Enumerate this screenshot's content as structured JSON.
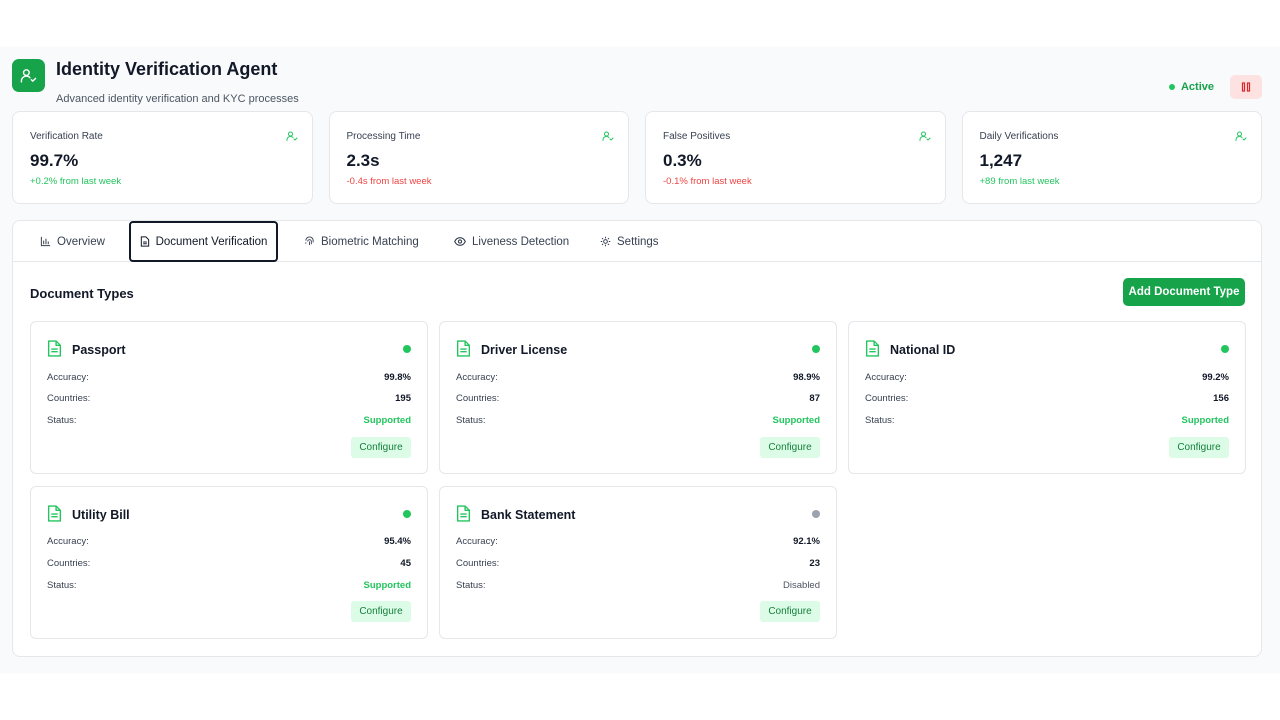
{
  "header": {
    "title": "Identity Verification Agent",
    "subtitle": "Advanced identity verification and KYC processes",
    "status": "Active",
    "icon": "user-check-icon",
    "pause_icon": "pause-icon"
  },
  "stats": [
    {
      "label": "Verification Rate",
      "value": "99.7%",
      "change": "+0.2% from last week",
      "trend": "positive"
    },
    {
      "label": "Processing Time",
      "value": "2.3s",
      "change": "-0.4s from last week",
      "trend": "negative"
    },
    {
      "label": "False Positives",
      "value": "0.3%",
      "change": "-0.1% from last week",
      "trend": "negative"
    },
    {
      "label": "Daily Verifications",
      "value": "1,247",
      "change": "+89 from last week",
      "trend": "positive"
    }
  ],
  "tabs": [
    {
      "label": "Overview",
      "icon": "bar-chart-icon"
    },
    {
      "label": "Document Verification",
      "icon": "document-icon",
      "active": true
    },
    {
      "label": "Biometric Matching",
      "icon": "fingerprint-icon"
    },
    {
      "label": "Liveness Detection",
      "icon": "eye-icon"
    },
    {
      "label": "Settings",
      "icon": "gear-icon"
    }
  ],
  "section": {
    "title": "Document Types",
    "add_label": "Add Document Type"
  },
  "labels": {
    "accuracy": "Accuracy:",
    "countries": "Countries:",
    "status": "Status:",
    "configure": "Configure"
  },
  "documents": [
    {
      "name": "Passport",
      "accuracy": "99.8%",
      "countries": "195",
      "status": "Supported",
      "enabled": true
    },
    {
      "name": "Driver License",
      "accuracy": "98.9%",
      "countries": "87",
      "status": "Supported",
      "enabled": true
    },
    {
      "name": "National ID",
      "accuracy": "99.2%",
      "countries": "156",
      "status": "Supported",
      "enabled": true
    },
    {
      "name": "Utility Bill",
      "accuracy": "95.4%",
      "countries": "45",
      "status": "Supported",
      "enabled": true
    },
    {
      "name": "Bank Statement",
      "accuracy": "92.1%",
      "countries": "23",
      "status": "Disabled",
      "enabled": false
    }
  ],
  "colors": {
    "brand": "#16a34a",
    "positive": "#22c55e",
    "negative": "#ef4444",
    "disabled_dot": "#9ca3af"
  }
}
